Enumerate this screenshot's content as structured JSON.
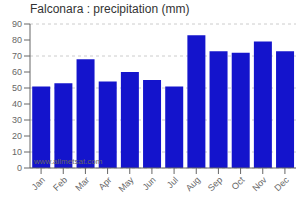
{
  "chart_data": {
    "type": "bar",
    "title": "Falconara : precipitation (mm)",
    "categories": [
      "Jan",
      "Feb",
      "Mar",
      "Apr",
      "May",
      "Jun",
      "Jul",
      "Aug",
      "Sep",
      "Oct",
      "Nov",
      "Dec"
    ],
    "values": [
      51,
      53,
      68,
      54,
      60,
      55,
      51,
      83,
      73,
      72,
      79,
      73
    ],
    "color": "#1414CC",
    "ylim": [
      0,
      90
    ],
    "yticks": [
      0,
      10,
      20,
      30,
      40,
      50,
      60,
      70,
      80,
      90
    ],
    "grid": true,
    "annotation": "www.allmetsat.com"
  }
}
